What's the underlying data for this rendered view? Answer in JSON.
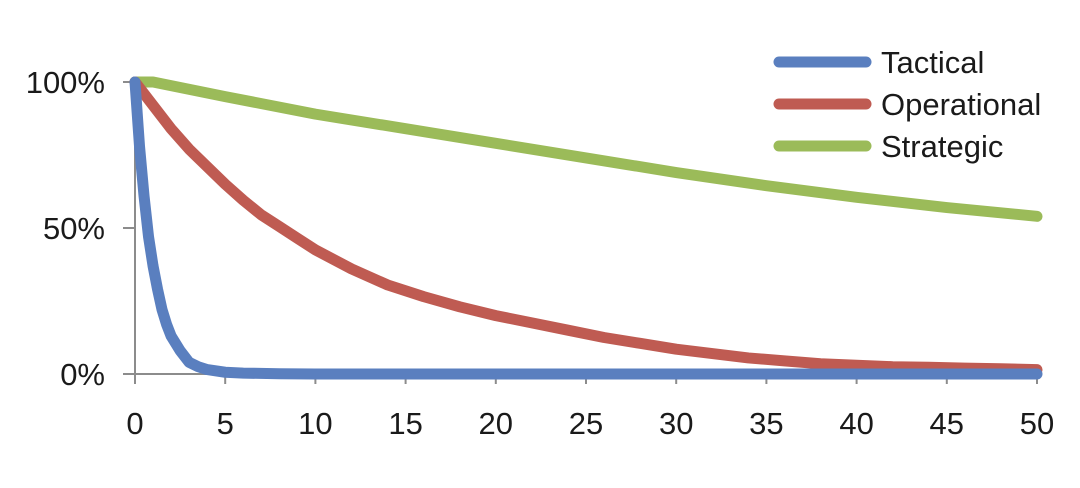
{
  "chart_data": {
    "type": "line",
    "title": "",
    "xlabel": "",
    "ylabel": "",
    "xlim": [
      0,
      50
    ],
    "ylim": [
      0,
      100
    ],
    "x_ticks": [
      0,
      5,
      10,
      15,
      20,
      25,
      30,
      35,
      40,
      45,
      50
    ],
    "x_tick_labels": [
      "0",
      "5",
      "10",
      "15",
      "20",
      "25",
      "30",
      "35",
      "40",
      "45",
      "50"
    ],
    "y_ticks": [
      0,
      50,
      100
    ],
    "y_tick_labels": [
      "0%",
      "50%",
      "100%"
    ],
    "grid": false,
    "legend": "top-right",
    "series": [
      {
        "name": "Tactical",
        "color": "#5a7fbf",
        "x": [
          0,
          0.25,
          0.5,
          0.75,
          1,
          1.25,
          1.5,
          1.75,
          2,
          2.5,
          3,
          3.5,
          4,
          5,
          6,
          8,
          10,
          15,
          20,
          30,
          40,
          50
        ],
        "y": [
          100,
          78,
          61,
          47,
          37,
          29,
          22,
          17,
          13,
          8,
          4,
          2.5,
          1.5,
          0.6,
          0.3,
          0.1,
          0,
          0,
          0,
          0,
          0,
          0
        ]
      },
      {
        "name": "Operational",
        "color": "#bf5b52",
        "x": [
          0,
          1,
          2,
          3,
          4,
          5,
          6,
          7,
          8,
          9,
          10,
          12,
          14,
          16,
          18,
          20,
          22,
          24,
          26,
          28,
          30,
          32,
          34,
          36,
          38,
          40,
          42,
          44,
          46,
          48,
          50
        ],
        "y": [
          100,
          92,
          84,
          77,
          71,
          65,
          59.5,
          54.5,
          50.5,
          46.5,
          42.5,
          36,
          30.5,
          26.5,
          23,
          20,
          17.5,
          15,
          12.5,
          10.5,
          8.5,
          7,
          5.5,
          4.5,
          3.5,
          3,
          2.5,
          2.3,
          2,
          1.8,
          1.5
        ]
      },
      {
        "name": "Strategic",
        "color": "#9bbb59",
        "x": [
          0,
          1,
          5,
          10,
          15,
          20,
          25,
          30,
          35,
          40,
          45,
          50
        ],
        "y": [
          100,
          100,
          95,
          89,
          84,
          79,
          74,
          69,
          64.5,
          60.5,
          57,
          54
        ]
      }
    ]
  }
}
